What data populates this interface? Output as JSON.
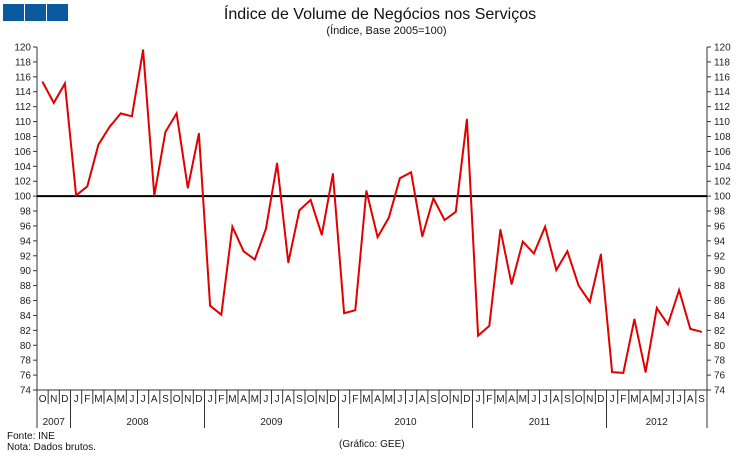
{
  "header": {
    "title": "Índice de Volume de Negócios nos Serviços",
    "subtitle": "(Índice, Base 2005=100)",
    "logo_color": "#0b5aa0"
  },
  "footer": {
    "source": "Fonte: INE",
    "note": "Nota: Dados brutos.",
    "credit": "(Gráfico: GEE)"
  },
  "chart_data": {
    "type": "line",
    "title": "Índice de Volume de Negócios nos Serviços",
    "subtitle": "(Índice, Base 2005=100)",
    "ylim": [
      74,
      120
    ],
    "yticks": [
      74,
      76,
      78,
      80,
      82,
      84,
      86,
      88,
      90,
      92,
      94,
      96,
      98,
      100,
      102,
      104,
      106,
      108,
      110,
      112,
      114,
      116,
      118,
      120
    ],
    "reference_line": 100,
    "month_labels": [
      "O",
      "N",
      "D",
      "J",
      "F",
      "M",
      "A",
      "M",
      "J",
      "J",
      "A",
      "S",
      "O",
      "N",
      "D",
      "J",
      "F",
      "M",
      "A",
      "M",
      "J",
      "J",
      "A",
      "S",
      "O",
      "N",
      "D",
      "J",
      "F",
      "M",
      "A",
      "M",
      "J",
      "J",
      "A",
      "S",
      "O",
      "N",
      "D",
      "J",
      "F",
      "M",
      "A",
      "M",
      "J",
      "J",
      "A",
      "S",
      "O",
      "N",
      "D",
      "J",
      "F",
      "M",
      "A",
      "M",
      "J",
      "J",
      "A",
      "S"
    ],
    "years": [
      {
        "label": "2007",
        "months": 3
      },
      {
        "label": "2008",
        "months": 12
      },
      {
        "label": "2009",
        "months": 12
      },
      {
        "label": "2010",
        "months": 12
      },
      {
        "label": "2011",
        "months": 12
      },
      {
        "label": "2012",
        "months": 9
      }
    ],
    "series": [
      {
        "name": "Índice",
        "color": "#e00000",
        "values": [
          115.3,
          112.5,
          115.1,
          100.1,
          101.3,
          106.9,
          109.3,
          111.1,
          110.7,
          119.6,
          100.1,
          108.6,
          111.1,
          101.1,
          108.4,
          85.3,
          84.1,
          95.9,
          92.6,
          91.5,
          95.6,
          104.4,
          91.1,
          98.1,
          99.5,
          94.8,
          103.0,
          84.3,
          84.7,
          100.7,
          94.5,
          97.1,
          102.4,
          103.2,
          94.6,
          99.7,
          96.8,
          97.9,
          110.3,
          81.3,
          82.6,
          95.5,
          88.2,
          93.9,
          92.3,
          95.9,
          90.1,
          92.6,
          88.0,
          85.8,
          92.2,
          76.4,
          76.3,
          83.5,
          76.4,
          85.0,
          82.8,
          87.4,
          82.2,
          81.8
        ]
      }
    ]
  }
}
